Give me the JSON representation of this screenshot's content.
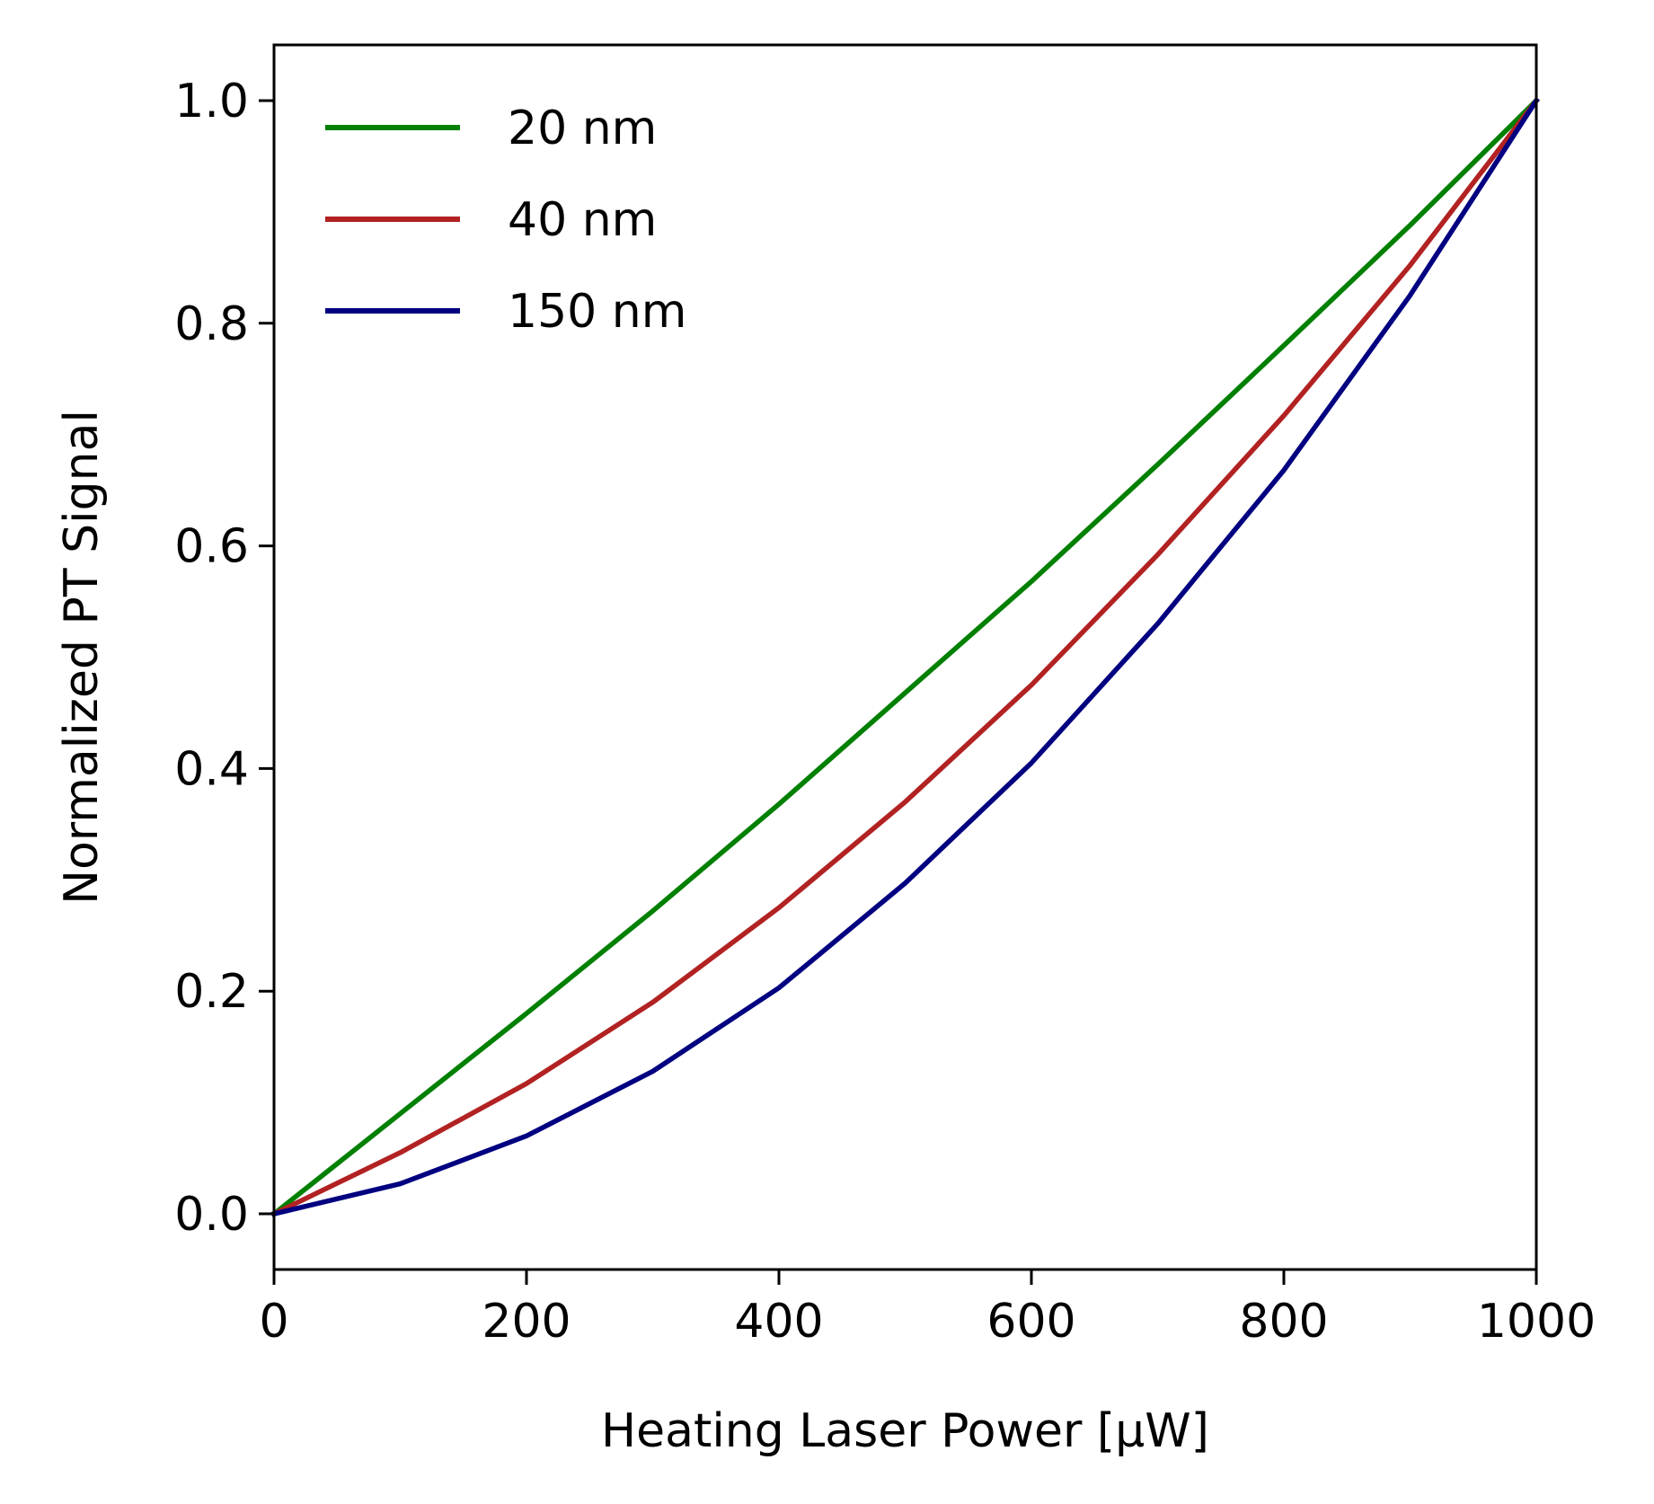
{
  "chart_data": {
    "type": "line",
    "title": "",
    "xlabel": "Heating Laser Power [μW]",
    "ylabel": "Normalized PT Signal",
    "xlim": [
      0,
      1000
    ],
    "ylim": [
      -0.05,
      1.05
    ],
    "grid": false,
    "legend_position": "top-left",
    "x_ticks": [
      0,
      200,
      400,
      600,
      800,
      1000
    ],
    "x_tick_labels": [
      "0",
      "200",
      "400",
      "600",
      "800",
      "1000"
    ],
    "y_ticks": [
      0.0,
      0.2,
      0.4,
      0.6,
      0.8,
      1.0
    ],
    "y_tick_labels": [
      "0.0",
      "0.2",
      "0.4",
      "0.6",
      "0.8",
      "1.0"
    ],
    "x": [
      0,
      100,
      200,
      300,
      400,
      500,
      600,
      700,
      800,
      900,
      1000
    ],
    "series": [
      {
        "name": "20 nm",
        "color": "#008000",
        "values": [
          0.0,
          0.09,
          0.18,
          0.272,
          0.368,
          0.468,
          0.568,
          0.673,
          0.78,
          0.888,
          1.0
        ]
      },
      {
        "name": "40 nm",
        "color": "#b22222",
        "values": [
          0.0,
          0.055,
          0.117,
          0.19,
          0.275,
          0.37,
          0.475,
          0.592,
          0.717,
          0.852,
          1.0
        ]
      },
      {
        "name": "150 nm",
        "color": "#000080",
        "values": [
          0.0,
          0.027,
          0.07,
          0.128,
          0.203,
          0.297,
          0.405,
          0.53,
          0.668,
          0.825,
          1.0
        ]
      }
    ]
  }
}
